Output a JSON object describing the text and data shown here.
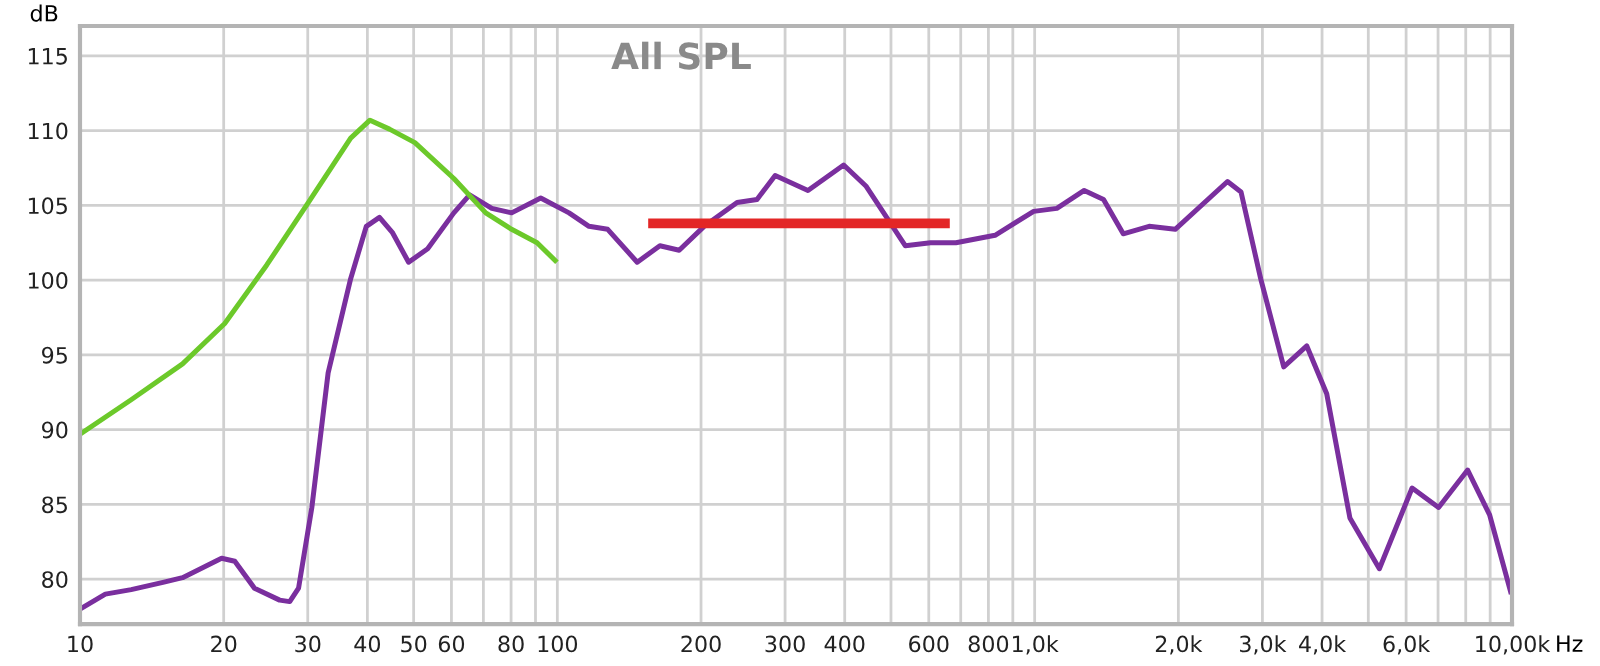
{
  "chart_data": {
    "type": "line",
    "title": "All SPL",
    "xlabel": "Hz",
    "ylabel": "dB",
    "log": "x",
    "grid": true,
    "marker": "none",
    "line_style": "solid",
    "xlim": [
      10,
      10000
    ],
    "ylim": [
      77,
      117
    ],
    "xticks": [
      10,
      20,
      30,
      40,
      50,
      60,
      {
        "value": 70,
        "label": null
      },
      80,
      {
        "value": 90,
        "label": null
      },
      100,
      200,
      300,
      400,
      {
        "value": 500,
        "label": null
      },
      600,
      {
        "value": 700,
        "label": null
      },
      800,
      {
        "value": 900,
        "label": null
      },
      {
        "value": 1000,
        "label": "1,0k"
      },
      {
        "value": 2000,
        "label": "2,0k"
      },
      {
        "value": 3000,
        "label": "3,0k"
      },
      {
        "value": 4000,
        "label": "4,0k"
      },
      {
        "value": 5000,
        "label": null
      },
      {
        "value": 6000,
        "label": "6,0k"
      },
      {
        "value": 7000,
        "label": null
      },
      {
        "value": 8000,
        "label": null
      },
      {
        "value": 9000,
        "label": null
      },
      {
        "value": 10000,
        "label": "10,00k"
      }
    ],
    "yticks": [
      80,
      85,
      90,
      95,
      100,
      105,
      110,
      115
    ],
    "series": [
      {
        "color": "#7a2f9e",
        "x": [
          10,
          11.3,
          12.8,
          15,
          16.4,
          19.8,
          21.1,
          23.2,
          26.2,
          27.5,
          28.7,
          30.6,
          33.1,
          36.9,
          39.8,
          42.4,
          45.1,
          48.8,
          53.5,
          60.7,
          65.5,
          72.9,
          80.2,
          92.3,
          105.8,
          116.5,
          127.5,
          147,
          164,
          180,
          203,
          238,
          262,
          286,
          335,
          398,
          443,
          536,
          605,
          684,
          826,
          995,
          1113,
          1270,
          1394,
          1533,
          1737,
          1970,
          2535,
          2706,
          2975,
          3325,
          3716,
          4091,
          4575,
          5274,
          6176,
          7018,
          8074,
          8977,
          9965
        ],
        "values": [
          78.0,
          79.0,
          79.3,
          79.8,
          80.1,
          81.4,
          81.2,
          79.4,
          78.6,
          78.5,
          79.4,
          84.8,
          93.8,
          100.1,
          103.6,
          104.2,
          103.2,
          101.2,
          102.1,
          104.5,
          105.7,
          104.8,
          104.5,
          105.5,
          104.5,
          103.6,
          103.4,
          101.2,
          102.3,
          102.0,
          103.6,
          105.2,
          105.4,
          107.0,
          106.0,
          107.7,
          106.3,
          102.3,
          102.5,
          102.5,
          103.0,
          104.6,
          104.8,
          106.0,
          105.4,
          103.1,
          103.6,
          103.4,
          106.6,
          105.9,
          100.1,
          94.2,
          95.6,
          92.4,
          84.1,
          80.7,
          86.1,
          84.8,
          87.3,
          84.3,
          79.0
        ]
      },
      {
        "color": "#6cc92a",
        "x": [
          10,
          12.8,
          16.4,
          20.1,
          24.6,
          30.1,
          36.9,
          40.5,
          44.5,
          50.3,
          60.7,
          70.8,
          80.2,
          90.7,
          99.8
        ],
        "values": [
          89.7,
          92.0,
          94.4,
          97.1,
          101.0,
          105.2,
          109.5,
          110.7,
          110.1,
          109.2,
          106.8,
          104.5,
          103.4,
          102.5,
          101.2
        ]
      },
      {
        "color": "#e32626",
        "x": [
          155,
          664
        ],
        "values": [
          103.8,
          103.8
        ]
      }
    ]
  }
}
